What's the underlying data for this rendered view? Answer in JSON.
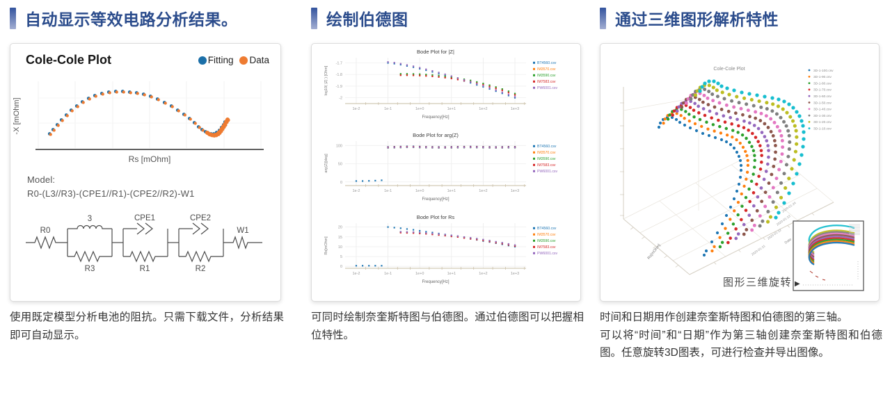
{
  "sections": [
    {
      "heading": "自动显示等效电路分析结果。",
      "caption": "使用既定模型分析电池的阻抗。只需下载文件，分析结果即可自动显示。",
      "plot": {
        "title": "Cole-Cole Plot",
        "model_label": "Model:",
        "model_formula": "R0-(L3//R3)-(CPE1//R1)-(CPE2//R2)-W1",
        "circuit": {
          "r0": "R0",
          "l": "3",
          "cpe1": "CPE1",
          "cpe2": "CPE2",
          "w1": "W1",
          "r3": "R3",
          "r1": "R1",
          "r2": "R2"
        }
      }
    },
    {
      "heading": "绘制伯德图",
      "caption": "可同时绘制奈奎斯特图与伯德图。通过伯德图可以把握相位特性。"
    },
    {
      "heading": "通过三维图形解析特性",
      "caption_1": "时间和日期用作创建奈奎斯特图和伯德图的第三轴。",
      "caption_2": "可以将“时间”和“日期”作为第三轴创建奈奎斯特图和伯德图。任意旋转3D图表，可进行检查并导出图像。",
      "rotate_label": "图形三维旋转",
      "rotate_arrow": "▶"
    }
  ],
  "chart_data": [
    {
      "id": "cole_cole_2d",
      "type": "scatter",
      "title": "Cole-Cole Plot",
      "xlabel": "Rs [mOhm]",
      "ylabel": "-X [mOhm]",
      "grid": true,
      "legend": [
        {
          "label": "Fitting",
          "color": "#1b6fa8"
        },
        {
          "label": "Data",
          "color": "#ee7b31"
        }
      ],
      "points": [
        [
          57,
          92
        ],
        [
          62,
          86
        ],
        [
          68,
          79
        ],
        [
          74,
          72
        ],
        [
          81,
          65
        ],
        [
          88,
          58
        ],
        [
          96,
          52
        ],
        [
          104,
          46
        ],
        [
          113,
          41
        ],
        [
          122,
          37
        ],
        [
          132,
          34
        ],
        [
          142,
          32
        ],
        [
          152,
          31
        ],
        [
          162,
          31
        ],
        [
          172,
          32
        ],
        [
          182,
          33
        ],
        [
          192,
          35
        ],
        [
          202,
          38
        ],
        [
          212,
          42
        ],
        [
          222,
          47
        ],
        [
          232,
          52
        ],
        [
          241,
          58
        ],
        [
          250,
          64
        ],
        [
          258,
          70
        ],
        [
          265,
          76
        ],
        [
          271,
          82
        ],
        [
          276,
          86
        ],
        [
          281,
          89
        ],
        [
          285,
          91
        ],
        [
          289,
          92
        ],
        [
          293,
          92
        ],
        [
          297,
          90
        ],
        [
          301,
          87
        ],
        [
          304,
          83
        ],
        [
          307,
          79
        ],
        [
          309,
          75
        ]
      ],
      "tail": [
        [
          283,
          90
        ],
        [
          286,
          92
        ],
        [
          289,
          93
        ],
        [
          292,
          93.5
        ],
        [
          295,
          93
        ],
        [
          298,
          91.5
        ],
        [
          300,
          89.5
        ],
        [
          302,
          87
        ],
        [
          304,
          84
        ],
        [
          306,
          81
        ],
        [
          308,
          78
        ],
        [
          310,
          74
        ],
        [
          312,
          71
        ]
      ]
    },
    {
      "id": "bode_plots",
      "type": "scatter",
      "xlabel": "Frequency[Hz]",
      "x_tick_labels": [
        "1e-2",
        "1e-1",
        "1e+0",
        "1e+1",
        "1e+2",
        "1e+3"
      ],
      "x_tick_vals": [
        -2,
        -1,
        0,
        1,
        2,
        3
      ],
      "xlim": [
        -2.35,
        3.35
      ],
      "files": [
        {
          "name": "BT4560.csv",
          "color": "#1f77b4"
        },
        {
          "name": "IM3570.csv",
          "color": "#ff7f0e"
        },
        {
          "name": "IM3590.csv",
          "color": "#2ca02c"
        },
        {
          "name": "IM7583.csv",
          "color": "#d62728"
        },
        {
          "name": "PW6001.csv",
          "color": "#9467bd"
        }
      ],
      "plots": [
        {
          "title": "Bode Plot for |Z|",
          "ylabel": "log10( |Z| ) [Ohm]",
          "y_tick_labels": [
            "-1.7",
            "-1.8",
            "-1.9",
            "-2"
          ],
          "y_tick_vals": [
            -1.7,
            -1.8,
            -1.9,
            -2
          ],
          "ylim": [
            -2.05,
            -1.655
          ],
          "curves": {
            "A": {
              "x0": -1,
              "dx": 0.2,
              "y": [
                -1.7,
                -1.706,
                -1.715,
                -1.726,
                -1.737,
                -1.75,
                -1.763,
                -1.777,
                -1.791,
                -1.806,
                -1.822,
                -1.838,
                -1.855,
                -1.871,
                -1.889,
                -1.906,
                -1.924,
                -1.943,
                -1.962,
                -1.981,
                -2.0
              ]
            },
            "B": {
              "x0": -0.6,
              "dx": 0.2,
              "y": [
                -1.8,
                -1.8,
                -1.801,
                -1.803,
                -1.806,
                -1.81,
                -1.815,
                -1.821,
                -1.828,
                -1.837,
                -1.847,
                -1.857,
                -1.87,
                -1.883,
                -1.898,
                -1.914,
                -1.931,
                -1.95,
                -1.97
              ]
            }
          },
          "series": [
            {
              "file": 0,
              "curves": [
                "A"
              ],
              "dy": 0
            },
            {
              "file": 1,
              "curves": [
                "B"
              ],
              "dy": 0
            },
            {
              "file": 2,
              "curves": [
                "B"
              ],
              "dy": 0.006
            },
            {
              "file": 3,
              "curves": [
                "B"
              ],
              "dy": -0.006
            },
            {
              "file": 4,
              "curves": [
                "A"
              ],
              "dy": 0.008
            }
          ]
        },
        {
          "title": "Bode Plot for arg(Z)",
          "ylabel": "arg(Z)[deg]",
          "y_tick_labels": [
            "100",
            "50",
            "0"
          ],
          "y_tick_vals": [
            100,
            50,
            0
          ],
          "ylim": [
            -10,
            112
          ],
          "curves": {
            "band": {
              "x0": -1,
              "dx": 0.2,
              "y": [
                94.5,
                95,
                95.5,
                96,
                96,
                95.5,
                95,
                94.8,
                94.5,
                94.5,
                94.8,
                95,
                95.3,
                95.6,
                95.3,
                95,
                94.7,
                94.5,
                94.7,
                95,
                95
              ]
            },
            "low": {
              "x0": -2,
              "dx": 0.2,
              "y": [
                1,
                1,
                1.5,
                2,
                3
              ]
            }
          },
          "series": [
            {
              "file": 0,
              "curves": [
                "band",
                "low"
              ],
              "dy": 1.5
            },
            {
              "file": 1,
              "curves": [
                "band"
              ],
              "dy": 0
            },
            {
              "file": 2,
              "curves": [
                "band"
              ],
              "dy": -1
            },
            {
              "file": 3,
              "curves": [
                "band"
              ],
              "dy": 0.5
            },
            {
              "file": 4,
              "curves": [
                "band"
              ],
              "dy": -0.5
            }
          ]
        },
        {
          "title": "Bode Plot for Rs",
          "ylabel": "Rs[mOhm]",
          "y_tick_labels": [
            "20",
            "15",
            "10",
            "5",
            "0"
          ],
          "y_tick_vals": [
            20,
            15,
            10,
            5,
            0
          ],
          "ylim": [
            -1,
            22
          ],
          "curves": {
            "A": {
              "x0": -1,
              "dx": 0.2,
              "y": [
                20,
                19.7,
                19.4,
                19,
                18.6,
                18.1,
                17.6,
                17.2,
                16.7,
                16.2,
                15.7,
                15.1,
                14.6,
                14,
                13.5,
                12.9,
                12.4,
                11.8,
                11.2,
                10.6,
                10
              ]
            },
            "B": {
              "x0": -0.6,
              "dx": 0.2,
              "y": [
                17.3,
                17.2,
                17.1,
                16.9,
                16.7,
                16.4,
                16.1,
                15.8,
                15.4,
                15.1,
                14.6,
                14.2,
                13.8,
                13.3,
                12.8,
                12.2,
                11.7,
                11.1,
                10.5
              ]
            },
            "low": {
              "x0": -2,
              "dx": 0.2,
              "y": [
                0.3,
                0.3,
                0.3,
                0.3,
                0.3
              ]
            }
          },
          "series": [
            {
              "file": 0,
              "curves": [
                "A",
                "low"
              ],
              "dy": 0
            },
            {
              "file": 1,
              "curves": [
                "B"
              ],
              "dy": 0
            },
            {
              "file": 2,
              "curves": [
                "B"
              ],
              "dy": 0.15
            },
            {
              "file": 3,
              "curves": [
                "B"
              ],
              "dy": -0.15
            },
            {
              "file": 4,
              "curves": [
                "B"
              ],
              "dy": 0.3
            }
          ]
        }
      ]
    },
    {
      "id": "cole_cole_3d",
      "type": "scatter3d",
      "title": "Cole-Cole Plot",
      "legend": [
        {
          "label": "3D-1-100.csv",
          "color": "#1f77b4"
        },
        {
          "label": "3D-1-90.csv",
          "color": "#ff7f0e"
        },
        {
          "label": "3D-1-80.csv",
          "color": "#2ca02c"
        },
        {
          "label": "3D-1-70.csv",
          "color": "#d62728"
        },
        {
          "label": "3D-1-60.csv",
          "color": "#9467bd"
        },
        {
          "label": "3D-1-50.csv",
          "color": "#8c564b"
        },
        {
          "label": "3D-1-40.csv",
          "color": "#e377c2"
        },
        {
          "label": "3D-1-30.csv",
          "color": "#7f7f7f"
        },
        {
          "label": "3D-1-20.csv",
          "color": "#bcbd22"
        },
        {
          "label": "3D-1-10.csv",
          "color": "#17becf"
        }
      ],
      "axis": {
        "bottom_label": "Rs[mOhm]",
        "date_label": "Date",
        "date_ticks": [
          "2020-01-24",
          "2020-01-23",
          "2020-01-22",
          "2020-01-21"
        ]
      },
      "front_curve": [
        [
          84,
          120
        ],
        [
          86,
          114
        ],
        [
          90,
          109
        ],
        [
          96,
          106
        ],
        [
          103,
          106
        ],
        [
          109,
          109
        ],
        [
          114,
          113
        ],
        [
          121,
          117
        ],
        [
          129,
          121
        ],
        [
          138,
          125
        ],
        [
          147,
          129
        ],
        [
          156,
          132
        ],
        [
          165,
          135
        ],
        [
          174,
          138
        ],
        [
          181,
          141
        ],
        [
          187,
          145
        ],
        [
          192,
          150
        ],
        [
          196,
          156
        ],
        [
          199,
          162
        ],
        [
          201,
          168
        ],
        [
          202,
          175
        ],
        [
          202,
          182
        ],
        [
          201,
          192
        ],
        [
          199,
          202
        ],
        [
          196,
          212
        ],
        [
          192,
          223
        ],
        [
          187,
          235
        ],
        [
          181,
          247
        ],
        [
          175,
          259
        ],
        [
          168,
          272
        ],
        [
          160,
          285
        ],
        [
          152,
          298
        ],
        [
          149,
          304
        ]
      ],
      "back_curve": [
        [
          143,
          68
        ],
        [
          146,
          62
        ],
        [
          150,
          57
        ],
        [
          156,
          54
        ],
        [
          163,
          54
        ],
        [
          169,
          57
        ],
        [
          174,
          61
        ],
        [
          182,
          64
        ],
        [
          192,
          67
        ],
        [
          203,
          70
        ],
        [
          214,
          72
        ],
        [
          225,
          74
        ],
        [
          236,
          76
        ],
        [
          247,
          78
        ],
        [
          256,
          80
        ],
        [
          264,
          83
        ],
        [
          271,
          87
        ],
        [
          277,
          92
        ],
        [
          282,
          98
        ],
        [
          286,
          104
        ],
        [
          289,
          111
        ],
        [
          291,
          118
        ],
        [
          292,
          127
        ],
        [
          292,
          137
        ],
        [
          291,
          148
        ],
        [
          289,
          160
        ],
        [
          286,
          173
        ],
        [
          282,
          187
        ],
        [
          277,
          201
        ],
        [
          271,
          215
        ],
        [
          264,
          229
        ],
        [
          256,
          243
        ],
        [
          252,
          250
        ]
      ]
    }
  ]
}
